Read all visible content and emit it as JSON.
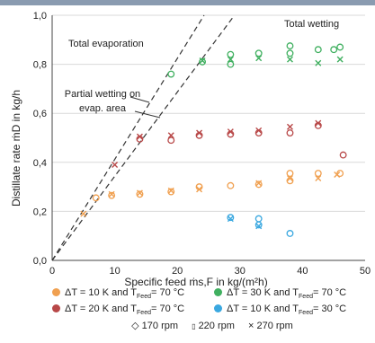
{
  "chart_data": {
    "type": "scatter",
    "xlabel": "Specific feed ṁs,F in kg/(m²h)",
    "ylabel": "Distillate rate ṁD in kg/h",
    "xlim": [
      0,
      50
    ],
    "ylim": [
      0,
      1.0
    ],
    "xticks": [
      "0",
      "10",
      "20",
      "30",
      "40",
      "50"
    ],
    "yticks": [
      "0,0",
      "0,2",
      "0,4",
      "0,6",
      "0,8",
      "1,0"
    ],
    "grid": "horizontal",
    "annotations": [
      "Total evaporation",
      "Total wetting",
      "Partial wetting on",
      "evap. area"
    ],
    "reference_lines": [
      {
        "x": [
          0,
          25
        ],
        "y": [
          0,
          1.03
        ]
      },
      {
        "x": [
          0,
          30
        ],
        "y": [
          0,
          1.03
        ]
      }
    ],
    "series": [
      {
        "color": "#f0a050",
        "points": [
          {
            "x": 5,
            "y": 0.19,
            "m": "x"
          },
          {
            "x": 7,
            "y": 0.255,
            "m": "o"
          },
          {
            "x": 9.5,
            "y": 0.265,
            "m": "o"
          },
          {
            "x": 9.5,
            "y": 0.27,
            "m": "x"
          },
          {
            "x": 14,
            "y": 0.27,
            "m": "o"
          },
          {
            "x": 14,
            "y": 0.275,
            "m": "x"
          },
          {
            "x": 19,
            "y": 0.28,
            "m": "o"
          },
          {
            "x": 19,
            "y": 0.285,
            "m": "x"
          },
          {
            "x": 23.5,
            "y": 0.3,
            "m": "o"
          },
          {
            "x": 23.5,
            "y": 0.29,
            "m": "x"
          },
          {
            "x": 28.5,
            "y": 0.305,
            "m": "o"
          },
          {
            "x": 33,
            "y": 0.31,
            "m": "o"
          },
          {
            "x": 33,
            "y": 0.315,
            "m": "x"
          },
          {
            "x": 38,
            "y": 0.355,
            "m": "o"
          },
          {
            "x": 38,
            "y": 0.335,
            "m": "x"
          },
          {
            "x": 38,
            "y": 0.325,
            "m": "o"
          },
          {
            "x": 42.5,
            "y": 0.355,
            "m": "o"
          },
          {
            "x": 42.5,
            "y": 0.335,
            "m": "x"
          },
          {
            "x": 45.5,
            "y": 0.35,
            "m": "x"
          },
          {
            "x": 46,
            "y": 0.355,
            "m": "o"
          }
        ]
      },
      {
        "color": "#b84848",
        "points": [
          {
            "x": 10,
            "y": 0.39,
            "m": "x"
          },
          {
            "x": 14,
            "y": 0.495,
            "m": "o"
          },
          {
            "x": 14,
            "y": 0.505,
            "m": "x"
          },
          {
            "x": 19,
            "y": 0.49,
            "m": "o"
          },
          {
            "x": 19,
            "y": 0.51,
            "m": "x"
          },
          {
            "x": 23.5,
            "y": 0.51,
            "m": "o"
          },
          {
            "x": 23.5,
            "y": 0.52,
            "m": "x"
          },
          {
            "x": 28.5,
            "y": 0.515,
            "m": "o"
          },
          {
            "x": 28.5,
            "y": 0.525,
            "m": "x"
          },
          {
            "x": 33,
            "y": 0.52,
            "m": "o"
          },
          {
            "x": 33,
            "y": 0.53,
            "m": "x"
          },
          {
            "x": 38,
            "y": 0.52,
            "m": "o"
          },
          {
            "x": 38,
            "y": 0.545,
            "m": "x"
          },
          {
            "x": 42.5,
            "y": 0.55,
            "m": "o"
          },
          {
            "x": 42.5,
            "y": 0.56,
            "m": "x"
          },
          {
            "x": 46.5,
            "y": 0.43,
            "m": "o"
          }
        ]
      },
      {
        "color": "#40b060",
        "points": [
          {
            "x": 19,
            "y": 0.76,
            "m": "o"
          },
          {
            "x": 24,
            "y": 0.81,
            "m": "o"
          },
          {
            "x": 24,
            "y": 0.815,
            "m": "x"
          },
          {
            "x": 28.5,
            "y": 0.84,
            "m": "o"
          },
          {
            "x": 28.5,
            "y": 0.82,
            "m": "x"
          },
          {
            "x": 28.5,
            "y": 0.8,
            "m": "o"
          },
          {
            "x": 33,
            "y": 0.845,
            "m": "o"
          },
          {
            "x": 33,
            "y": 0.825,
            "m": "x"
          },
          {
            "x": 38,
            "y": 0.875,
            "m": "o"
          },
          {
            "x": 38,
            "y": 0.845,
            "m": "o"
          },
          {
            "x": 38,
            "y": 0.82,
            "m": "x"
          },
          {
            "x": 42.5,
            "y": 0.86,
            "m": "o"
          },
          {
            "x": 42.5,
            "y": 0.805,
            "m": "x"
          },
          {
            "x": 45,
            "y": 0.86,
            "m": "o"
          },
          {
            "x": 46,
            "y": 0.87,
            "m": "o"
          },
          {
            "x": 46,
            "y": 0.82,
            "m": "x"
          }
        ]
      },
      {
        "color": "#3aa8e0",
        "points": [
          {
            "x": 28.5,
            "y": 0.175,
            "m": "o"
          },
          {
            "x": 28.5,
            "y": 0.17,
            "m": "x"
          },
          {
            "x": 33,
            "y": 0.17,
            "m": "o"
          },
          {
            "x": 33,
            "y": 0.145,
            "m": "o"
          },
          {
            "x": 33,
            "y": 0.14,
            "m": "x"
          },
          {
            "x": 38,
            "y": 0.11,
            "m": "o"
          }
        ]
      }
    ],
    "legend": {
      "placement": "bottom",
      "colors": [
        {
          "label_pre": "ΔT = 10 K and T",
          "label_sub": "Feed",
          "label_post": "= 70 °C",
          "color": "#f0a050"
        },
        {
          "label_pre": "ΔT = 30 K and T",
          "label_sub": "Feed",
          "label_post": "= 70 °C",
          "color": "#40b060"
        },
        {
          "label_pre": "ΔT = 20 K and T",
          "label_sub": "Feed",
          "label_post": "= 70 °C",
          "color": "#b84848"
        },
        {
          "label_pre": "ΔT = 10 K and T",
          "label_sub": "Feed",
          "label_post": "= 30 °C",
          "color": "#3aa8e0"
        }
      ],
      "markers": [
        {
          "symbol": "◇",
          "label": "170 rpm"
        },
        {
          "symbol": "▯",
          "label": "220 rpm"
        },
        {
          "symbol": "×",
          "label": "270 rpm"
        }
      ]
    }
  }
}
